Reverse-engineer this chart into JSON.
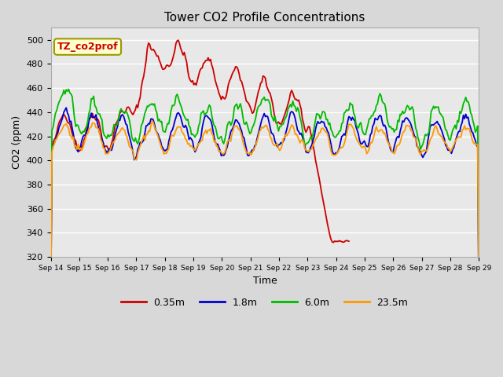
{
  "title": "Tower CO2 Profile Concentrations",
  "xlabel": "Time",
  "ylabel": "CO2 (ppm)",
  "ylim": [
    320,
    510
  ],
  "yticks": [
    320,
    340,
    360,
    380,
    400,
    420,
    440,
    460,
    480,
    500
  ],
  "annotation_text": "TZ_co2prof",
  "annotation_color": "#cc0000",
  "annotation_bg": "#ffffcc",
  "annotation_border": "#999900",
  "colors": {
    "0.35m": "#cc0000",
    "1.8m": "#0000cc",
    "6.0m": "#00bb00",
    "23.5m": "#ff9900"
  },
  "x_labels": [
    "Sep 14",
    "Sep 15",
    "Sep 16",
    "Sep 17",
    "Sep 18",
    "Sep 19",
    "Sep 20",
    "Sep 21",
    "Sep 22",
    "Sep 23",
    "Sep 24",
    "Sep 25",
    "Sep 26",
    "Sep 27",
    "Sep 28",
    "Sep 29"
  ],
  "fig_bg": "#d8d8d8",
  "ax_bg": "#e8e8e8",
  "grid_color": "#ffffff",
  "linewidth": 1.3,
  "n_days": 15
}
